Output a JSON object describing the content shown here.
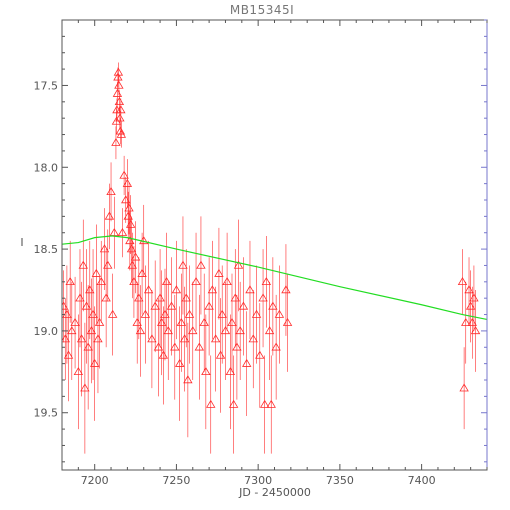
{
  "chart_data": {
    "type": "scatter",
    "title": "MB15345I",
    "xlabel": "JD - 2450000",
    "ylabel": "I",
    "xlim": [
      7180,
      7440
    ],
    "ylim": [
      19.85,
      17.1
    ],
    "x_ticks": [
      7200,
      7250,
      7300,
      7350,
      7400
    ],
    "y_ticks": [
      17.5,
      18.0,
      18.5,
      19.0,
      19.5
    ],
    "x_tick_labels": [
      "7200",
      "7250",
      "7300",
      "7350",
      "7400"
    ],
    "y_tick_labels": [
      "17.5",
      "18.0",
      "18.5",
      "19.0",
      "19.5"
    ],
    "grid": false,
    "colors": {
      "data": "#ff2a2a",
      "model": "#22dd22",
      "axis": "#555555",
      "right_axis": "#7777cc"
    },
    "series": [
      {
        "marker": "triangle",
        "points": [
          [
            7181,
            18.85,
            0.22
          ],
          [
            7182,
            19.05,
            0.25
          ],
          [
            7183,
            18.9,
            0.3
          ],
          [
            7184,
            19.15,
            0.28
          ],
          [
            7185,
            18.7,
            0.25
          ],
          [
            7186,
            19.0,
            0.3
          ],
          [
            7188,
            18.95,
            0.28
          ],
          [
            7190,
            19.25,
            0.35
          ],
          [
            7191,
            18.8,
            0.3
          ],
          [
            7192,
            19.05,
            0.35
          ],
          [
            7193,
            18.6,
            0.28
          ],
          [
            7194,
            19.35,
            0.4
          ],
          [
            7195,
            18.85,
            0.35
          ],
          [
            7196,
            19.1,
            0.38
          ],
          [
            7197,
            18.75,
            0.3
          ],
          [
            7198,
            19.0,
            0.32
          ],
          [
            7199,
            18.9,
            0.4
          ],
          [
            7200,
            19.2,
            0.35
          ],
          [
            7201,
            18.65,
            0.3
          ],
          [
            7202,
            19.05,
            0.33
          ],
          [
            7203,
            18.95,
            0.28
          ],
          [
            7204,
            18.7,
            0.25
          ],
          [
            7206,
            18.5,
            0.25
          ],
          [
            7207,
            18.8,
            0.3
          ],
          [
            7208,
            18.6,
            0.22
          ],
          [
            7209,
            18.3,
            0.2
          ],
          [
            7210,
            18.15,
            0.18
          ],
          [
            7211,
            18.9,
            0.25
          ],
          [
            7212,
            18.4,
            0.22
          ],
          [
            7213,
            17.85,
            0.1
          ],
          [
            7213.3,
            17.72,
            0.08
          ],
          [
            7213.6,
            17.65,
            0.07
          ],
          [
            7213.9,
            17.55,
            0.07
          ],
          [
            7214.2,
            17.45,
            0.06
          ],
          [
            7214.5,
            17.42,
            0.06
          ],
          [
            7214.8,
            17.5,
            0.06
          ],
          [
            7215.1,
            17.6,
            0.07
          ],
          [
            7215.4,
            17.7,
            0.07
          ],
          [
            7215.7,
            17.78,
            0.08
          ],
          [
            7216,
            17.65,
            0.07
          ],
          [
            7216.3,
            17.8,
            0.08
          ],
          [
            7217,
            18.4,
            0.15
          ],
          [
            7218,
            18.05,
            0.12
          ],
          [
            7219,
            18.2,
            0.14
          ],
          [
            7220,
            18.1,
            0.15
          ],
          [
            7220.5,
            18.3,
            0.15
          ],
          [
            7221,
            18.25,
            0.16
          ],
          [
            7221.5,
            18.45,
            0.18
          ],
          [
            7222,
            18.35,
            0.18
          ],
          [
            7222.5,
            18.5,
            0.2
          ],
          [
            7223,
            18.6,
            0.2
          ],
          [
            7224,
            18.7,
            0.22
          ],
          [
            7225,
            18.55,
            0.22
          ],
          [
            7226,
            18.95,
            0.25
          ],
          [
            7227,
            18.8,
            0.25
          ],
          [
            7228,
            19.0,
            0.28
          ],
          [
            7229,
            18.65,
            0.25
          ],
          [
            7230,
            18.45,
            0.22
          ],
          [
            7231,
            18.9,
            0.3
          ],
          [
            7233,
            18.75,
            0.3
          ],
          [
            7235,
            19.05,
            0.3
          ],
          [
            7237,
            18.85,
            0.28
          ],
          [
            7239,
            19.1,
            0.3
          ],
          [
            7240,
            18.8,
            0.3
          ],
          [
            7241,
            18.95,
            0.32
          ],
          [
            7242,
            19.15,
            0.3
          ],
          [
            7243,
            18.9,
            0.28
          ],
          [
            7244,
            18.7,
            0.3
          ],
          [
            7245,
            19.0,
            0.3
          ],
          [
            7247,
            18.85,
            0.3
          ],
          [
            7249,
            19.1,
            0.32
          ],
          [
            7250,
            18.75,
            0.3
          ],
          [
            7252,
            19.2,
            0.35
          ],
          [
            7253,
            18.95,
            0.3
          ],
          [
            7254,
            18.6,
            0.3
          ],
          [
            7255,
            19.05,
            0.32
          ],
          [
            7256,
            18.8,
            0.3
          ],
          [
            7257,
            19.3,
            0.35
          ],
          [
            7258,
            18.9,
            0.3
          ],
          [
            7260,
            19.0,
            0.3
          ],
          [
            7262,
            18.7,
            0.3
          ],
          [
            7264,
            19.1,
            0.32
          ],
          [
            7265,
            18.6,
            0.3
          ],
          [
            7267,
            18.95,
            0.3
          ],
          [
            7268,
            19.25,
            0.35
          ],
          [
            7270,
            18.85,
            0.3
          ],
          [
            7271,
            19.45,
            0.3
          ],
          [
            7272,
            18.75,
            0.3
          ],
          [
            7274,
            19.05,
            0.32
          ],
          [
            7276,
            18.65,
            0.28
          ],
          [
            7277,
            19.15,
            0.35
          ],
          [
            7278,
            18.9,
            0.3
          ],
          [
            7280,
            19.0,
            0.3
          ],
          [
            7281,
            18.7,
            0.3
          ],
          [
            7283,
            19.25,
            0.35
          ],
          [
            7284,
            18.95,
            0.3
          ],
          [
            7285,
            19.45,
            0.3
          ],
          [
            7286,
            18.8,
            0.3
          ],
          [
            7287,
            19.1,
            0.32
          ],
          [
            7288,
            18.6,
            0.28
          ],
          [
            7289,
            19.0,
            0.3
          ],
          [
            7291,
            18.85,
            0.3
          ],
          [
            7293,
            19.2,
            0.32
          ],
          [
            7295,
            18.75,
            0.3
          ],
          [
            7297,
            19.05,
            0.3
          ],
          [
            7299,
            18.9,
            0.3
          ],
          [
            7301,
            19.15,
            0.32
          ],
          [
            7303,
            18.8,
            0.3
          ],
          [
            7304,
            19.45,
            0.3
          ],
          [
            7305,
            18.7,
            0.28
          ],
          [
            7307,
            19.0,
            0.3
          ],
          [
            7308,
            19.45,
            0.3
          ],
          [
            7309,
            18.85,
            0.3
          ],
          [
            7311,
            19.1,
            0.32
          ],
          [
            7313,
            18.9,
            0.3
          ],
          [
            7317,
            18.75,
            0.28
          ],
          [
            7318,
            18.95,
            0.3
          ],
          [
            7425,
            18.7,
            0.2
          ],
          [
            7426,
            19.35,
            0.25
          ],
          [
            7427,
            18.95,
            0.25
          ],
          [
            7429,
            18.75,
            0.2
          ],
          [
            7430,
            18.85,
            0.22
          ],
          [
            7431,
            18.95,
            0.22
          ],
          [
            7432,
            18.8,
            0.2
          ],
          [
            7433,
            19.0,
            0.25
          ]
        ]
      },
      {
        "marker": "line",
        "points": [
          [
            7180,
            18.47
          ],
          [
            7190,
            18.46
          ],
          [
            7200,
            18.43
          ],
          [
            7210,
            18.42
          ],
          [
            7211,
            18.42
          ],
          [
            7220,
            18.43
          ],
          [
            7250,
            18.5
          ],
          [
            7300,
            18.61
          ],
          [
            7350,
            18.73
          ],
          [
            7400,
            18.84
          ],
          [
            7425,
            18.9
          ],
          [
            7440,
            18.93
          ]
        ]
      }
    ]
  }
}
